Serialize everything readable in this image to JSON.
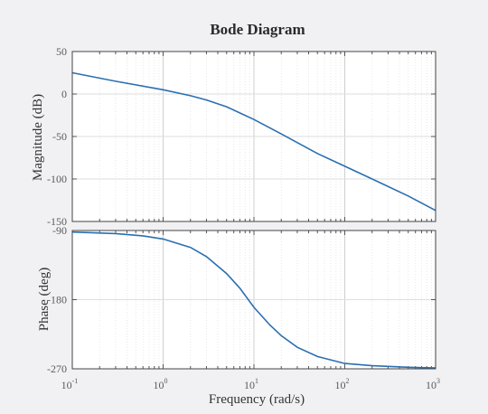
{
  "chart_data": {
    "type": "line",
    "title": "Bode Diagram",
    "xlabel": "Frequency  (rad/s)",
    "x_scale": "log",
    "xlim": [
      0.1,
      1000
    ],
    "x_ticks": [
      {
        "base": "10",
        "exp": "-1"
      },
      {
        "base": "10",
        "exp": "0"
      },
      {
        "base": "10",
        "exp": "1"
      },
      {
        "base": "10",
        "exp": "2"
      },
      {
        "base": "10",
        "exp": "3"
      }
    ],
    "grid": true,
    "line_color": "#2a6fb0",
    "panels": [
      {
        "name": "magnitude",
        "ylabel": "Magnitude (dB)",
        "ylim": [
          -150,
          50
        ],
        "y_ticks": [
          "50",
          "0",
          "-50",
          "-100",
          "-150"
        ],
        "y_tick_values": [
          50,
          0,
          -50,
          -100,
          -150
        ],
        "series": [
          {
            "x": [
              0.1,
              0.3,
              1,
              2,
              3,
              5,
              10,
              20,
              50,
              100,
              200,
              500,
              1000
            ],
            "y": [
              25,
              15,
              5,
              -2,
              -7,
              -15,
              -30,
              -47,
              -70,
              -85,
              -100,
              -120,
              -137
            ]
          }
        ]
      },
      {
        "name": "phase",
        "ylabel": "Phase (deg)",
        "ylim": [
          -270,
          -90
        ],
        "y_ticks": [
          "-90",
          "-180",
          "-270"
        ],
        "y_tick_values": [
          -90,
          -180,
          -270
        ],
        "series": [
          {
            "x": [
              0.1,
              0.3,
              0.6,
              1,
              2,
              3,
              5,
              7,
              10,
              15,
              20,
              30,
              50,
              100,
              200,
              500,
              1000
            ],
            "y": [
              -92,
              -94,
              -97,
              -101,
              -112,
              -124,
              -146,
              -165,
              -190,
              -213,
              -227,
              -242,
              -254,
              -263,
              -266,
              -268,
              -269
            ]
          }
        ]
      }
    ]
  }
}
